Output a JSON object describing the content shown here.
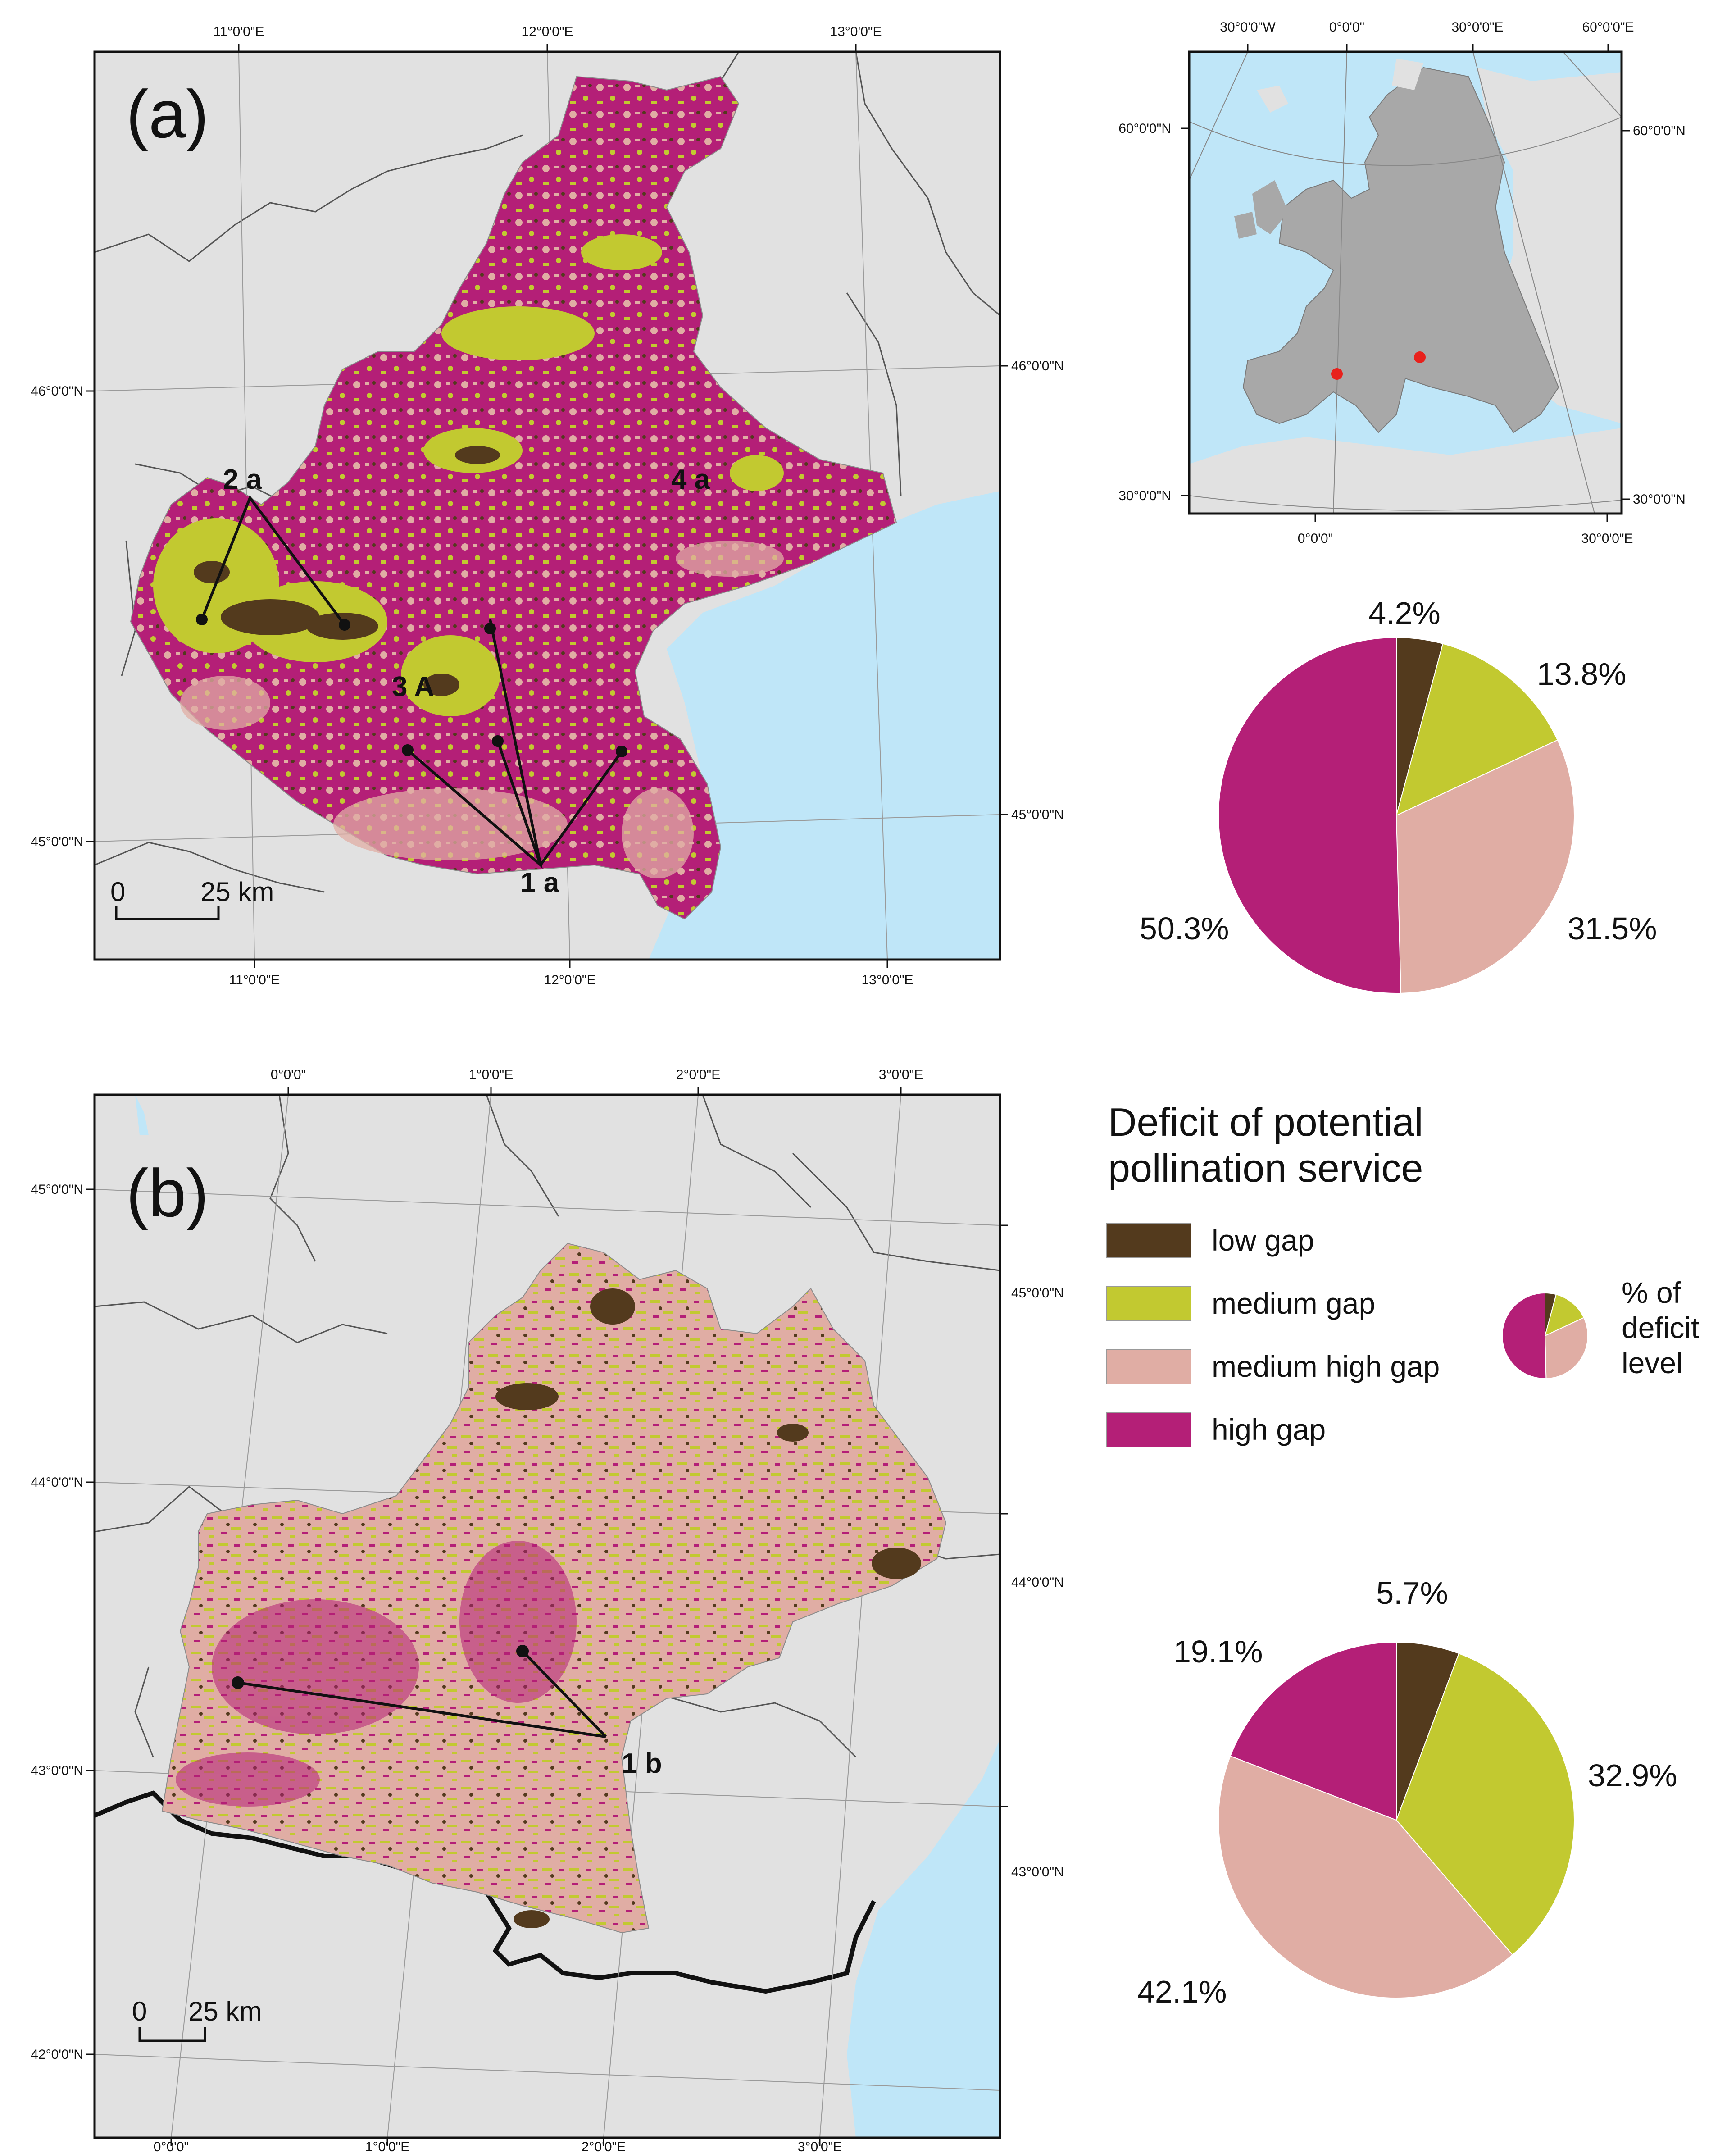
{
  "colors": {
    "low": "#533a1d",
    "medium": "#c2c930",
    "medium_high": "#e0ada4",
    "high": "#b41f77",
    "sea": "#bfe6f8",
    "land": "#e1e1e1",
    "europe": "#a8a8a8",
    "marker": "#e8211c"
  },
  "panel_a": {
    "label": "(a)",
    "top_lon": [
      "11°0'0\"E",
      "12°0'0\"E",
      "13°0'0\"E"
    ],
    "bottom_lon": [
      "11°0'0\"E",
      "12°0'0\"E",
      "13°0'0\"E"
    ],
    "left_lat": [
      "46°0'0\"N",
      "45°0'0\"N"
    ],
    "right_lat": [
      "46°0'0\"N",
      "45°0'0\"N"
    ],
    "annotations": [
      "2 a",
      "4 a",
      "3 A",
      "1 a"
    ],
    "scale": {
      "zero": "0",
      "dist": "25 km"
    }
  },
  "panel_b": {
    "label": "(b)",
    "top_lon": [
      "0°0'0\"",
      "1°0'0\"E",
      "2°0'0\"E",
      "3°0'0\"E"
    ],
    "bottom_lon": [
      "0°0'0\"",
      "1°0'0\"E",
      "2°0'0\"E",
      "3°0'0\"E"
    ],
    "left_lat": [
      "45°0'0\"N",
      "44°0'0\"N",
      "43°0'0\"N",
      "42°0'0\"N"
    ],
    "right_lat": [
      "45°0'0\"N",
      "44°0'0\"N",
      "43°0'0\"N"
    ],
    "annotations": [
      "1 b"
    ],
    "scale": {
      "zero": "0",
      "dist": "25 km"
    }
  },
  "inset": {
    "top_lon": [
      "30°0'0\"W",
      "0°0'0\"",
      "30°0'0\"E",
      "60°0'0\"E"
    ],
    "bottom_lon": [
      "0°0'0\"",
      "30°0'0\"E"
    ],
    "left_lat": [
      "60°0'0\"N",
      "30°0'0\"N"
    ],
    "right_lat": [
      "60°0'0\"N",
      "30°0'0\"N"
    ]
  },
  "legend": {
    "title_line1": "Deficit of potential",
    "title_line2": "pollination service",
    "items": [
      {
        "label": "low gap",
        "color": "#533a1d"
      },
      {
        "label": "medium gap",
        "color": "#c2c930"
      },
      {
        "label": "medium high gap",
        "color": "#e0ada4"
      },
      {
        "label": "high gap",
        "color": "#b41f77"
      }
    ],
    "mini_label": [
      "% of",
      "deficit",
      "level"
    ]
  },
  "chart_data": [
    {
      "type": "pie",
      "categories": [
        "low gap",
        "medium gap",
        "medium high gap",
        "high gap"
      ],
      "values": [
        4.2,
        13.8,
        31.5,
        50.3
      ],
      "labels": [
        "4.2%",
        "13.8%",
        "31.5%",
        "50.3%"
      ]
    },
    {
      "type": "pie",
      "categories": [
        "low gap",
        "medium gap",
        "medium high gap",
        "high gap"
      ],
      "values": [
        5.7,
        32.9,
        42.1,
        19.1
      ],
      "labels": [
        "5.7%",
        "32.9%",
        "42.1%",
        "19.1%"
      ]
    }
  ]
}
